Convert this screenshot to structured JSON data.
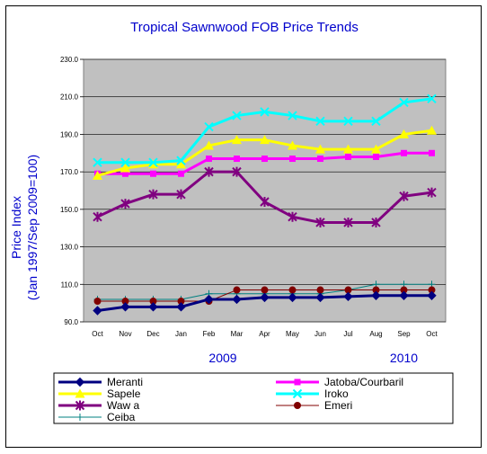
{
  "chart_data": {
    "type": "line",
    "title": "Tropical Sawnwood FOB Price Trends",
    "ylabel_line1": "Price Index",
    "ylabel_line2": "(Jan 1997/Sep 2009=100)",
    "ylim": [
      90,
      230
    ],
    "ytick_step": 20,
    "yticks": [
      "90.0",
      "110.0",
      "130.0",
      "150.0",
      "170.0",
      "190.0",
      "210.0",
      "230.0"
    ],
    "categories": [
      "Oct",
      "Nov",
      "Dec",
      "Jan",
      "Feb",
      "Mar",
      "Apr",
      "May",
      "Jun",
      "Jul",
      "Aug",
      "Sep",
      "Oct"
    ],
    "year_labels": [
      {
        "label": "2009",
        "category_index": 4.5
      },
      {
        "label": "2010",
        "category_index": 11
      }
    ],
    "grid": true,
    "series": [
      {
        "name": "Meranti",
        "color": "#000080",
        "marker": "diamond",
        "values": [
          96,
          98,
          98,
          98,
          102,
          102,
          103,
          103,
          103,
          103.5,
          104,
          104,
          104
        ]
      },
      {
        "name": "Jatoba/Courbaril",
        "color": "#ff00ff",
        "marker": "square",
        "values": [
          169,
          169,
          169,
          169,
          177,
          177,
          177,
          177,
          177,
          178,
          178,
          180,
          180
        ]
      },
      {
        "name": "Sapele",
        "color": "#ffff00",
        "marker": "triangle",
        "values": [
          168,
          172,
          174,
          174,
          184,
          187,
          187,
          184,
          182,
          182,
          182,
          190,
          192
        ]
      },
      {
        "name": "Iroko",
        "color": "#00ffff",
        "marker": "x",
        "values": [
          175,
          175,
          175,
          176,
          194,
          200,
          202,
          200,
          197,
          197,
          197,
          207,
          209
        ]
      },
      {
        "name": "Waw a",
        "color": "#800080",
        "marker": "star",
        "values": [
          146,
          153,
          158,
          158,
          170,
          170,
          154,
          146,
          143,
          143,
          143,
          157,
          159
        ]
      },
      {
        "name": "Emeri",
        "color": "#800000",
        "marker": "circle",
        "values": [
          101,
          101,
          101,
          101,
          101,
          107,
          107,
          107,
          107,
          107,
          107,
          107,
          107
        ]
      },
      {
        "name": "Ceiba",
        "color": "#008080",
        "marker": "plus",
        "values": [
          102,
          102,
          102,
          102,
          105,
          105,
          105,
          105,
          105,
          107,
          110,
          110,
          110
        ]
      }
    ]
  }
}
